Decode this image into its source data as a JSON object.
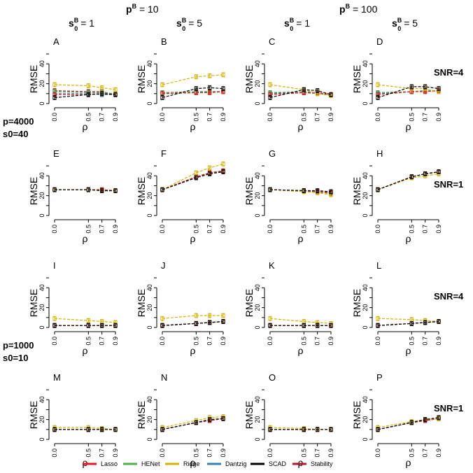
{
  "figure": {
    "group_headers": [
      {
        "prefix": "p",
        "sup": "B",
        "rest": " = 10"
      },
      {
        "prefix": "p",
        "sup": "B",
        "rest": " = 100"
      }
    ],
    "column_headers": [
      {
        "prefix": "s",
        "sup": "B",
        "sub": "0",
        "rest": " = 1"
      },
      {
        "prefix": "s",
        "sup": "B",
        "sub": "0",
        "rest": " = 5"
      },
      {
        "prefix": "s",
        "sup": "B",
        "sub": "0",
        "rest": " = 1"
      },
      {
        "prefix": "s",
        "sup": "B",
        "sub": "0",
        "rest": " = 5"
      }
    ],
    "row_side_labels": [
      "SNR=4",
      "SNR=1",
      "SNR=4",
      "SNR=1"
    ],
    "block_labels": [
      [
        "p=4000",
        "s0=40"
      ],
      [
        "p=1000",
        "s0=10"
      ]
    ],
    "ylabel": "RMSE",
    "xlabel": "ρ",
    "x_ticks": [
      "0.0",
      "0.5",
      "0.7",
      "0.9"
    ],
    "y_ticks": [
      "0",
      "20",
      "40"
    ]
  },
  "legend": [
    {
      "name": "Lasso",
      "color": "#e41a1c"
    },
    {
      "name": "HENet",
      "color": "#4daf4a"
    },
    {
      "name": "Ridge",
      "color": "#d4b106"
    },
    {
      "name": "Dantzig",
      "color": "#377eb8"
    },
    {
      "name": "SCAD",
      "color": "#000000"
    },
    {
      "name": "Stability",
      "color": "#b2182b"
    }
  ],
  "chart_data": {
    "type": "line",
    "x": [
      0.0,
      0.5,
      0.7,
      0.9
    ],
    "ylim": [
      0,
      55
    ],
    "panels": [
      {
        "label": "A",
        "series": [
          {
            "name": "Lasso",
            "values": [
              9,
              9,
              10,
              9
            ]
          },
          {
            "name": "HENet",
            "values": [
              12,
              11,
              11,
              10
            ]
          },
          {
            "name": "Ridge",
            "values": [
              19,
              18,
              16,
              14
            ]
          },
          {
            "name": "Dantzig",
            "values": [
              10,
              10,
              9,
              9
            ]
          },
          {
            "name": "SCAD",
            "values": [
              6,
              9,
              10,
              9
            ]
          },
          {
            "name": "Stability",
            "values": [
              13,
              12,
              12,
              9
            ]
          }
        ]
      },
      {
        "label": "B",
        "series": [
          {
            "name": "Lasso",
            "values": [
              10,
              11,
              11,
              12
            ]
          },
          {
            "name": "HENet",
            "values": [
              11,
              12,
              12,
              12
            ]
          },
          {
            "name": "Ridge",
            "values": [
              19,
              27,
              28,
              29
            ]
          },
          {
            "name": "Dantzig",
            "values": [
              10,
              11,
              12,
              12
            ]
          },
          {
            "name": "SCAD",
            "values": [
              6,
              15,
              16,
              15
            ]
          },
          {
            "name": "Stability",
            "values": [
              11,
              12,
              12,
              12
            ]
          }
        ]
      },
      {
        "label": "C",
        "series": [
          {
            "name": "Lasso",
            "values": [
              9,
              11,
              11,
              9
            ]
          },
          {
            "name": "HENet",
            "values": [
              11,
              12,
              11,
              9
            ]
          },
          {
            "name": "Ridge",
            "values": [
              19,
              14,
              10,
              8
            ]
          },
          {
            "name": "Dantzig",
            "values": [
              10,
              11,
              10,
              9
            ]
          },
          {
            "name": "SCAD",
            "values": [
              6,
              14,
              13,
              9
            ]
          },
          {
            "name": "Stability",
            "values": [
              11,
              11,
              11,
              9
            ]
          }
        ]
      },
      {
        "label": "D",
        "series": [
          {
            "name": "Lasso",
            "values": [
              9,
              12,
              12,
              13
            ]
          },
          {
            "name": "HENet",
            "values": [
              11,
              12,
              13,
              13
            ]
          },
          {
            "name": "Ridge",
            "values": [
              19,
              15,
              15,
              12
            ]
          },
          {
            "name": "Dantzig",
            "values": [
              10,
              12,
              13,
              13
            ]
          },
          {
            "name": "SCAD",
            "values": [
              6,
              17,
              17,
              15
            ]
          },
          {
            "name": "Stability",
            "values": [
              11,
              12,
              13,
              13
            ]
          }
        ]
      },
      {
        "label": "E",
        "series": [
          {
            "name": "Lasso",
            "values": [
              26,
              26,
              26,
              25
            ]
          },
          {
            "name": "HENet",
            "values": [
              26,
              26,
              25,
              25
            ]
          },
          {
            "name": "Ridge",
            "values": [
              26,
              26,
              25,
              25
            ]
          },
          {
            "name": "Dantzig",
            "values": [
              26,
              26,
              25,
              25
            ]
          },
          {
            "name": "SCAD",
            "values": [
              26,
              26,
              25,
              25
            ]
          },
          {
            "name": "Stability",
            "values": [
              26,
              26,
              26,
              25
            ]
          }
        ]
      },
      {
        "label": "F",
        "series": [
          {
            "name": "Lasso",
            "values": [
              26,
              39,
              43,
              45
            ]
          },
          {
            "name": "HENet",
            "values": [
              26,
              39,
              43,
              45
            ]
          },
          {
            "name": "Ridge",
            "values": [
              26,
              43,
              48,
              52
            ]
          },
          {
            "name": "Dantzig",
            "values": [
              26,
              39,
              43,
              45
            ]
          },
          {
            "name": "SCAD",
            "values": [
              26,
              38,
              42,
              44
            ]
          },
          {
            "name": "Stability",
            "values": [
              26,
              39,
              43,
              45
            ]
          }
        ]
      },
      {
        "label": "G",
        "series": [
          {
            "name": "Lasso",
            "values": [
              26,
              25,
              24,
              23
            ]
          },
          {
            "name": "HENet",
            "values": [
              26,
              25,
              24,
              22
            ]
          },
          {
            "name": "Ridge",
            "values": [
              26,
              24,
              23,
              21
            ]
          },
          {
            "name": "Dantzig",
            "values": [
              26,
              25,
              24,
              23
            ]
          },
          {
            "name": "SCAD",
            "values": [
              26,
              25,
              25,
              24
            ]
          },
          {
            "name": "Stability",
            "values": [
              26,
              25,
              24,
              23
            ]
          }
        ]
      },
      {
        "label": "H",
        "series": [
          {
            "name": "Lasso",
            "values": [
              26,
              39,
              42,
              44
            ]
          },
          {
            "name": "HENet",
            "values": [
              26,
              39,
              42,
              44
            ]
          },
          {
            "name": "Ridge",
            "values": [
              26,
              38,
              40,
              42
            ]
          },
          {
            "name": "Dantzig",
            "values": [
              26,
              39,
              42,
              44
            ]
          },
          {
            "name": "SCAD",
            "values": [
              26,
              39,
              42,
              44
            ]
          },
          {
            "name": "Stability",
            "values": [
              26,
              39,
              42,
              44
            ]
          }
        ]
      },
      {
        "label": "I",
        "series": [
          {
            "name": "Lasso",
            "values": [
              2,
              2,
              2,
              2
            ]
          },
          {
            "name": "HENet",
            "values": [
              2,
              2,
              2,
              2
            ]
          },
          {
            "name": "Ridge",
            "values": [
              9,
              7,
              6,
              5
            ]
          },
          {
            "name": "Dantzig",
            "values": [
              2,
              2,
              2,
              2
            ]
          },
          {
            "name": "SCAD",
            "values": [
              2,
              2,
              2,
              2
            ]
          },
          {
            "name": "Stability",
            "values": [
              2,
              2,
              2,
              2
            ]
          }
        ]
      },
      {
        "label": "J",
        "series": [
          {
            "name": "Lasso",
            "values": [
              2,
              4,
              5,
              6
            ]
          },
          {
            "name": "HENet",
            "values": [
              2,
              4,
              5,
              6
            ]
          },
          {
            "name": "Ridge",
            "values": [
              9,
              12,
              12,
              12
            ]
          },
          {
            "name": "Dantzig",
            "values": [
              2,
              4,
              5,
              6
            ]
          },
          {
            "name": "SCAD",
            "values": [
              2,
              4,
              5,
              6
            ]
          },
          {
            "name": "Stability",
            "values": [
              2,
              4,
              5,
              6
            ]
          }
        ]
      },
      {
        "label": "K",
        "series": [
          {
            "name": "Lasso",
            "values": [
              2,
              2,
              2,
              2
            ]
          },
          {
            "name": "HENet",
            "values": [
              2,
              2,
              2,
              2
            ]
          },
          {
            "name": "Ridge",
            "values": [
              9,
              6,
              5,
              4
            ]
          },
          {
            "name": "Dantzig",
            "values": [
              2,
              2,
              2,
              2
            ]
          },
          {
            "name": "SCAD",
            "values": [
              2,
              2,
              2,
              2
            ]
          },
          {
            "name": "Stability",
            "values": [
              2,
              2,
              2,
              2
            ]
          }
        ]
      },
      {
        "label": "L",
        "series": [
          {
            "name": "Lasso",
            "values": [
              2,
              4,
              5,
              6
            ]
          },
          {
            "name": "HENet",
            "values": [
              2,
              4,
              5,
              6
            ]
          },
          {
            "name": "Ridge",
            "values": [
              9,
              8,
              7,
              6
            ]
          },
          {
            "name": "Dantzig",
            "values": [
              2,
              4,
              5,
              6
            ]
          },
          {
            "name": "SCAD",
            "values": [
              2,
              4,
              5,
              6
            ]
          },
          {
            "name": "Stability",
            "values": [
              2,
              4,
              5,
              6
            ]
          }
        ]
      },
      {
        "label": "M",
        "series": [
          {
            "name": "Lasso",
            "values": [
              10,
              10,
              10,
              10
            ]
          },
          {
            "name": "HENet",
            "values": [
              10,
              10,
              10,
              10
            ]
          },
          {
            "name": "Ridge",
            "values": [
              12,
              12,
              11,
              10
            ]
          },
          {
            "name": "Dantzig",
            "values": [
              10,
              10,
              10,
              10
            ]
          },
          {
            "name": "SCAD",
            "values": [
              10,
              10,
              10,
              10
            ]
          },
          {
            "name": "Stability",
            "values": [
              10,
              10,
              10,
              10
            ]
          }
        ]
      },
      {
        "label": "N",
        "series": [
          {
            "name": "Lasso",
            "values": [
              10,
              17,
              19,
              21
            ]
          },
          {
            "name": "HENet",
            "values": [
              10,
              17,
              19,
              21
            ]
          },
          {
            "name": "Ridge",
            "values": [
              12,
              19,
              22,
              23
            ]
          },
          {
            "name": "Dantzig",
            "values": [
              10,
              17,
              19,
              21
            ]
          },
          {
            "name": "SCAD",
            "values": [
              10,
              17,
              20,
              21
            ]
          },
          {
            "name": "Stability",
            "values": [
              10,
              17,
              19,
              21
            ]
          }
        ]
      },
      {
        "label": "O",
        "series": [
          {
            "name": "Lasso",
            "values": [
              10,
              10,
              10,
              10
            ]
          },
          {
            "name": "HENet",
            "values": [
              10,
              10,
              10,
              10
            ]
          },
          {
            "name": "Ridge",
            "values": [
              12,
              11,
              10,
              10
            ]
          },
          {
            "name": "Dantzig",
            "values": [
              10,
              10,
              10,
              10
            ]
          },
          {
            "name": "SCAD",
            "values": [
              10,
              10,
              10,
              10
            ]
          },
          {
            "name": "Stability",
            "values": [
              10,
              10,
              10,
              10
            ]
          }
        ]
      },
      {
        "label": "P",
        "series": [
          {
            "name": "Lasso",
            "values": [
              10,
              17,
              19,
              21
            ]
          },
          {
            "name": "HENet",
            "values": [
              10,
              17,
              19,
              21
            ]
          },
          {
            "name": "Ridge",
            "values": [
              12,
              18,
              20,
              21
            ]
          },
          {
            "name": "Dantzig",
            "values": [
              10,
              17,
              19,
              21
            ]
          },
          {
            "name": "SCAD",
            "values": [
              10,
              17,
              20,
              22
            ]
          },
          {
            "name": "Stability",
            "values": [
              10,
              17,
              19,
              21
            ]
          }
        ]
      }
    ]
  }
}
